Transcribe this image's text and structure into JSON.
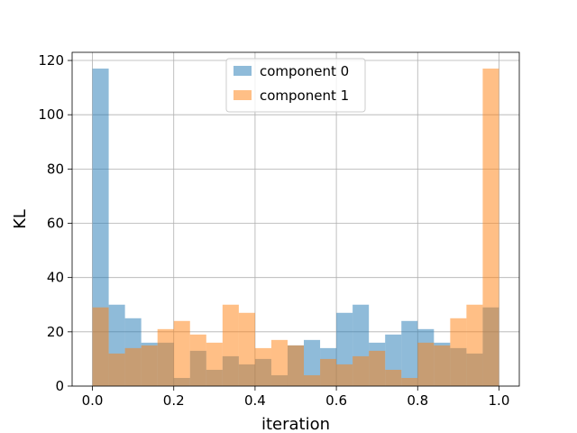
{
  "chart_data": {
    "type": "bar",
    "title": "",
    "xlabel": "iteration",
    "ylabel": "KL",
    "xlim": [
      -0.05,
      1.05
    ],
    "ylim": [
      0,
      123
    ],
    "grid": true,
    "legend_position": "top-center",
    "bin_width": 0.04,
    "x_ticks": [
      0.0,
      0.2,
      0.4,
      0.6,
      0.8,
      1.0
    ],
    "x_tick_labels": [
      "0.0",
      "0.2",
      "0.4",
      "0.6",
      "0.8",
      "1.0"
    ],
    "y_ticks": [
      0,
      20,
      40,
      60,
      80,
      100,
      120
    ],
    "y_tick_labels": [
      "0",
      "20",
      "40",
      "60",
      "80",
      "100",
      "120"
    ],
    "bin_starts": [
      0.0,
      0.04,
      0.08,
      0.12,
      0.16,
      0.2,
      0.24,
      0.28,
      0.32,
      0.36,
      0.4,
      0.44,
      0.48,
      0.52,
      0.56,
      0.6,
      0.64,
      0.68,
      0.72,
      0.76,
      0.8,
      0.84,
      0.88,
      0.92,
      0.96
    ],
    "series": [
      {
        "name": "component 0",
        "color": "#1f77b4",
        "opacity": 0.5,
        "values": [
          117,
          30,
          25,
          16,
          16,
          3,
          13,
          6,
          11,
          8,
          10,
          4,
          15,
          17,
          14,
          27,
          30,
          16,
          19,
          24,
          21,
          16,
          14,
          12,
          29
        ]
      },
      {
        "name": "component 1",
        "color": "#ff7f0e",
        "opacity": 0.5,
        "values": [
          29,
          12,
          14,
          15,
          21,
          24,
          19,
          16,
          30,
          27,
          14,
          17,
          15,
          4,
          10,
          8,
          11,
          13,
          6,
          3,
          16,
          15,
          25,
          30,
          117
        ]
      }
    ]
  }
}
